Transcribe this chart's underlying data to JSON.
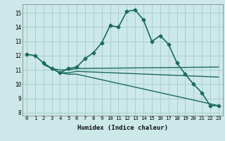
{
  "xlabel": "Humidex (Indice chaleur)",
  "background_color": "#cce8e8",
  "grid_color": "#aacfcf",
  "line_color": "#1a6b5a",
  "xlim": [
    -0.5,
    23.5
  ],
  "ylim": [
    7.8,
    15.6
  ],
  "yticks": [
    8,
    9,
    10,
    11,
    12,
    13,
    14,
    15
  ],
  "xticks": [
    0,
    1,
    2,
    3,
    4,
    5,
    6,
    7,
    8,
    9,
    10,
    11,
    12,
    13,
    14,
    15,
    16,
    17,
    18,
    19,
    20,
    21,
    22,
    23
  ],
  "lines": [
    {
      "x": [
        0,
        1,
        2,
        3,
        4,
        5,
        6,
        7,
        8,
        9,
        10,
        11,
        12,
        13,
        14,
        15,
        16,
        17,
        18,
        19,
        20,
        21,
        22,
        23
      ],
      "y": [
        12.1,
        12.0,
        11.5,
        11.1,
        10.8,
        11.1,
        11.2,
        11.8,
        12.2,
        12.9,
        14.1,
        14.0,
        15.1,
        15.2,
        14.5,
        13.0,
        13.4,
        12.8,
        11.5,
        10.7,
        10.0,
        9.4,
        8.5,
        8.5
      ],
      "marker": "D",
      "markersize": 2.5,
      "linewidth": 1.2,
      "has_marker": true
    },
    {
      "x": [
        2,
        3,
        4,
        5,
        6,
        23
      ],
      "y": [
        11.4,
        11.1,
        11.0,
        11.0,
        11.1,
        11.2
      ],
      "marker": null,
      "markersize": 0,
      "linewidth": 1.0,
      "has_marker": false
    },
    {
      "x": [
        2,
        3,
        4,
        5,
        6,
        23
      ],
      "y": [
        11.4,
        11.1,
        10.8,
        10.8,
        10.9,
        10.5
      ],
      "marker": null,
      "markersize": 0,
      "linewidth": 1.0,
      "has_marker": false
    },
    {
      "x": [
        2,
        3,
        4,
        5,
        6,
        23
      ],
      "y": [
        11.4,
        11.1,
        10.8,
        10.7,
        10.7,
        8.5
      ],
      "marker": null,
      "markersize": 0,
      "linewidth": 1.0,
      "has_marker": false
    }
  ]
}
